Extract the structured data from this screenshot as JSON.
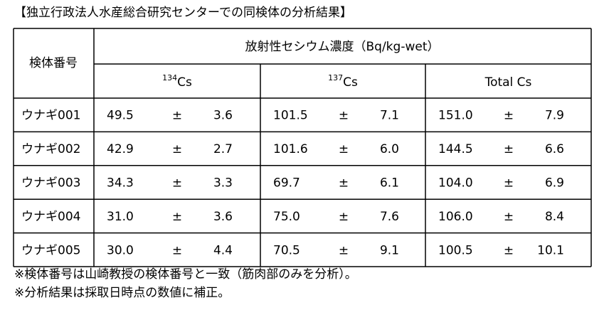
{
  "title": "【独立行政法人水産総合研究センターでの同検体の分析結果】",
  "table": {
    "id_header": "検体番号",
    "group_header": "放射性セシウム濃度（Bq/kg-wet）",
    "pm": "±",
    "columns": [
      {
        "mass": "134",
        "symbol": "Cs"
      },
      {
        "mass": "137",
        "symbol": "Cs"
      },
      {
        "label": "Total Cs"
      }
    ],
    "rows": [
      {
        "label": "ウナギ001",
        "values": [
          {
            "value": "49.5",
            "error": "3.6"
          },
          {
            "value": "101.5",
            "error": "7.1"
          },
          {
            "value": "151.0",
            "error": "7.9"
          }
        ]
      },
      {
        "label": "ウナギ002",
        "values": [
          {
            "value": "42.9",
            "error": "2.7"
          },
          {
            "value": "101.6",
            "error": "6.0"
          },
          {
            "value": "144.5",
            "error": "6.6"
          }
        ]
      },
      {
        "label": "ウナギ003",
        "values": [
          {
            "value": "34.3",
            "error": "3.3"
          },
          {
            "value": "69.7",
            "error": "6.1"
          },
          {
            "value": "104.0",
            "error": "6.9"
          }
        ]
      },
      {
        "label": "ウナギ004",
        "values": [
          {
            "value": "31.0",
            "error": "3.6"
          },
          {
            "value": "75.0",
            "error": "7.6"
          },
          {
            "value": "106.0",
            "error": "8.4"
          }
        ]
      },
      {
        "label": "ウナギ005",
        "values": [
          {
            "value": "30.0",
            "error": "4.4"
          },
          {
            "value": "70.5",
            "error": "9.1"
          },
          {
            "value": "100.5",
            "error": "10.1"
          }
        ]
      }
    ]
  },
  "notes": [
    "※検体番号は山崎教授の検体番号と一致（筋肉部のみを分析）。",
    "※分析結果は採取日時点の数値に補正。"
  ]
}
